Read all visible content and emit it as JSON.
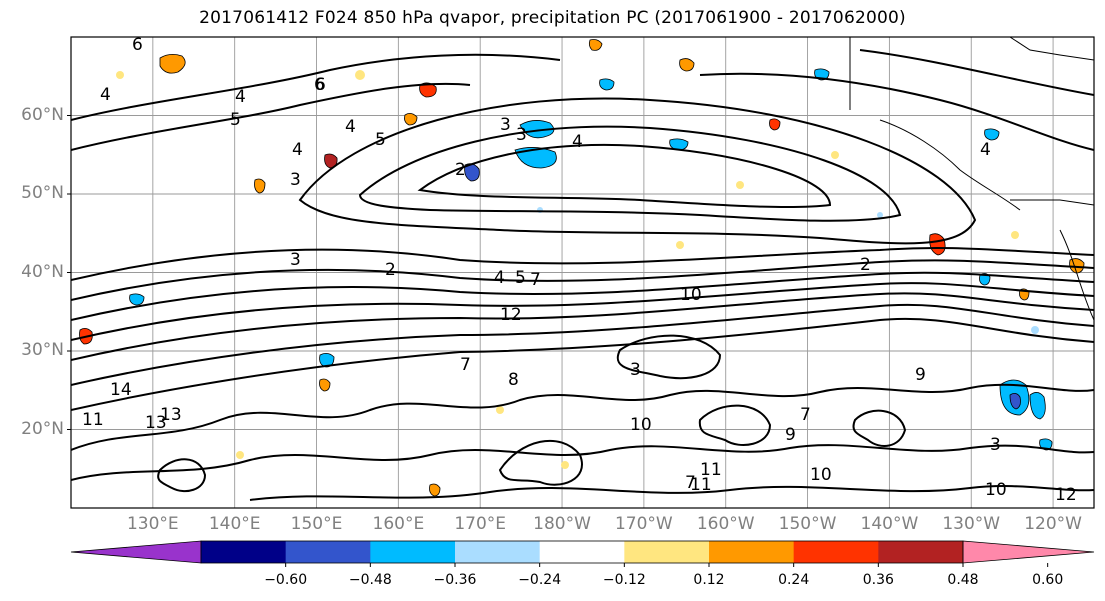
{
  "title": "2017061412 F024 850 hPa qvapor, precipitation PC (2017061900 - 2017062000)",
  "map": {
    "lat_ticks": [
      "60°N",
      "50°N",
      "40°N",
      "30°N",
      "20°N"
    ],
    "lat_values": [
      60,
      50,
      40,
      30,
      20
    ],
    "lon_ticks": [
      "130°E",
      "140°E",
      "150°E",
      "160°E",
      "170°E",
      "180°W",
      "170°W",
      "160°W",
      "150°W",
      "140°W",
      "130°W",
      "120°W"
    ],
    "lon_values_east": [
      130,
      140,
      150,
      160,
      170,
      180,
      190,
      200,
      210,
      220,
      230,
      240
    ],
    "extent": {
      "lon_min": 120,
      "lon_max": 245,
      "lat_min": 10,
      "lat_max": 70
    },
    "contour_labels": [
      "6",
      "4",
      "6",
      "4",
      "3",
      "5",
      "2",
      "3",
      "4",
      "3",
      "4",
      "5",
      "4",
      "3",
      "2",
      "4",
      "5",
      "7",
      "10",
      "12",
      "13",
      "14",
      "13",
      "11",
      "7",
      "8",
      "9",
      "10",
      "11",
      "10",
      "11",
      "10",
      "12",
      "7",
      "2",
      "9",
      "7",
      "3",
      "3",
      "4",
      "6"
    ],
    "colors": {
      "grid": "#9a9a9a",
      "tick_text": "#808080",
      "coast": "#000000"
    }
  },
  "colorbar": {
    "labels": [
      "−0.60",
      "−0.48",
      "−0.36",
      "−0.24",
      "−0.12",
      "0.12",
      "0.24",
      "0.36",
      "0.48",
      "0.60"
    ],
    "colors": [
      "#9933cc",
      "#000088",
      "#3355cc",
      "#00bbff",
      "#aaddff",
      "#ffffff",
      "#ffe680",
      "#ff9900",
      "#ff3300",
      "#b22222",
      "#ff88aa"
    ],
    "extend": "both"
  }
}
